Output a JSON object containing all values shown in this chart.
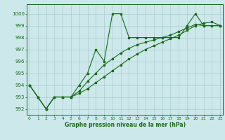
{
  "background_color": "#cce8ea",
  "grid_color": "#aacccc",
  "line_color": "#1a6b1a",
  "xlabel": "Graphe pression niveau de la mer (hPa)",
  "ylim": [
    991.5,
    1000.8
  ],
  "xlim": [
    -0.3,
    23.3
  ],
  "yticks": [
    992,
    993,
    994,
    995,
    996,
    997,
    998,
    999,
    1000
  ],
  "xticks": [
    0,
    1,
    2,
    3,
    4,
    5,
    6,
    7,
    8,
    9,
    10,
    11,
    12,
    13,
    14,
    15,
    16,
    17,
    18,
    19,
    20,
    21,
    22,
    23
  ],
  "series": [
    [
      994.0,
      993.0,
      992.0,
      993.0,
      993.0,
      993.0,
      994.0,
      995.0,
      997.0,
      996.0,
      1000.0,
      1000.0,
      998.0,
      998.0,
      998.0,
      998.0,
      998.0,
      998.0,
      998.0,
      999.0,
      1000.0,
      999.0,
      999.0,
      999.0
    ],
    [
      994.0,
      993.0,
      992.0,
      993.0,
      993.0,
      993.0,
      993.3,
      993.7,
      994.2,
      994.7,
      995.2,
      995.7,
      996.2,
      996.6,
      997.0,
      997.3,
      997.6,
      997.9,
      998.2,
      998.6,
      999.0,
      999.2,
      999.3,
      999.0
    ],
    [
      994.0,
      993.0,
      992.0,
      993.0,
      993.0,
      993.0,
      993.5,
      994.3,
      995.0,
      995.7,
      996.2,
      996.7,
      997.1,
      997.4,
      997.6,
      997.8,
      998.0,
      998.2,
      998.5,
      998.8,
      999.1,
      999.0,
      999.0,
      999.0
    ]
  ]
}
